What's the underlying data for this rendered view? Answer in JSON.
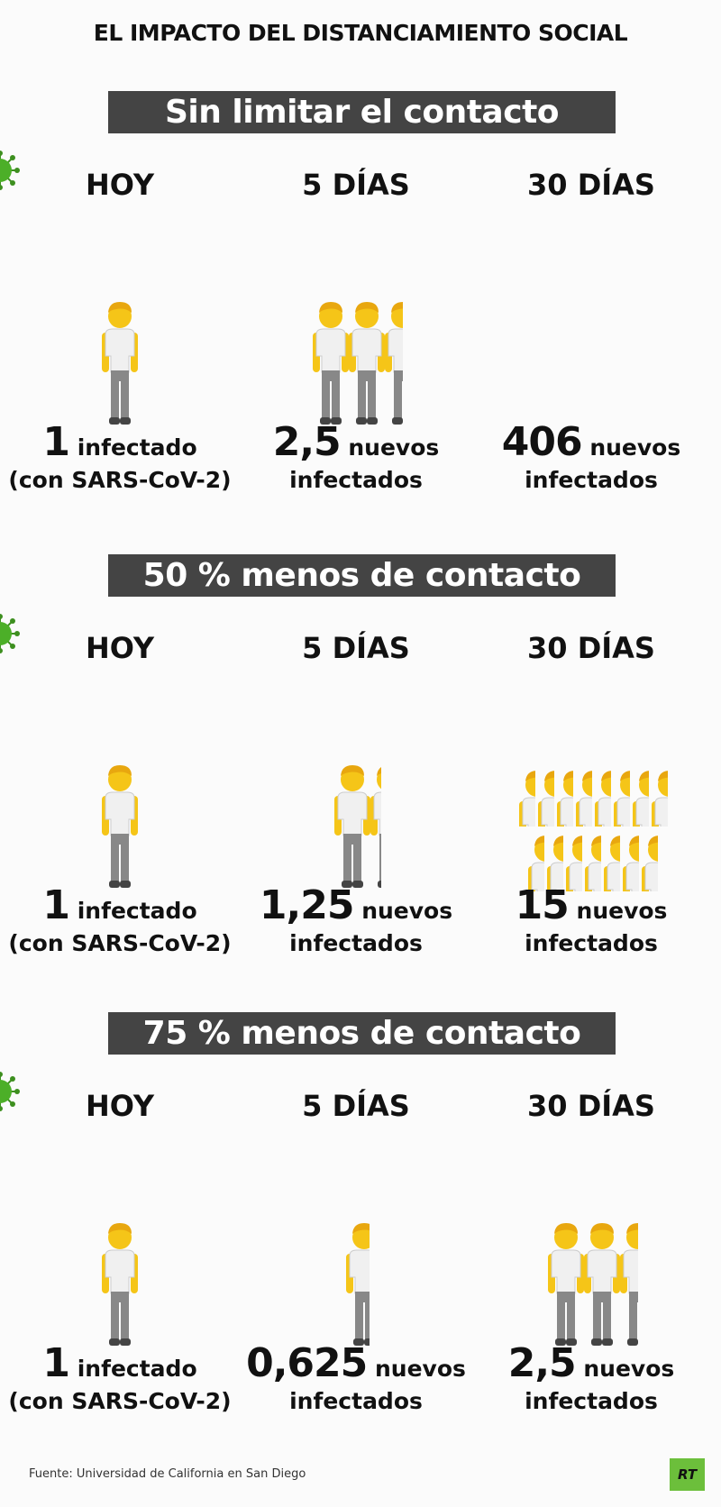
{
  "title": "EL IMPACTO DEL DISTANCIAMIENTO SOCIAL",
  "colors": {
    "banner": "#444444",
    "skin": "#f5c518",
    "shirt": "#f2f2f2",
    "pants": "#8a8a8a",
    "virus": "#4caf28",
    "logo": "#6cbf3b"
  },
  "scenarios": [
    {
      "banner": "Sin limitar el contacto",
      "columns": [
        {
          "header": "HOY",
          "value": 1,
          "num": "1",
          "line1": "infectado",
          "line2": "(con SARS-CoV-2)"
        },
        {
          "header": "5 DÍAS",
          "value": 2.5,
          "num": "2,5",
          "line1": "nuevos",
          "line2": "infectados"
        },
        {
          "header": "30 DÍAS",
          "value": 406,
          "num": "406",
          "line1": "nuevos",
          "line2": "infectados"
        }
      ]
    },
    {
      "banner": "50 % menos de contacto",
      "columns": [
        {
          "header": "HOY",
          "value": 1,
          "num": "1",
          "line1": "infectado",
          "line2": "(con SARS-CoV-2)"
        },
        {
          "header": "5 DÍAS",
          "value": 1.25,
          "num": "1,25",
          "line1": "nuevos",
          "line2": "infectados"
        },
        {
          "header": "30 DÍAS",
          "value": 15,
          "num": "15",
          "line1": "nuevos",
          "line2": "infectados"
        }
      ]
    },
    {
      "banner": "75 % menos de contacto",
      "columns": [
        {
          "header": "HOY",
          "value": 1,
          "num": "1",
          "line1": "infectado",
          "line2": "(con SARS-CoV-2)"
        },
        {
          "header": "5 DÍAS",
          "value": 0.625,
          "num": "0,625",
          "line1": "nuevos",
          "line2": "infectados"
        },
        {
          "header": "30 DÍAS",
          "value": 2.5,
          "num": "2,5",
          "line1": "nuevos",
          "line2": "infectados"
        }
      ]
    }
  ],
  "footer": {
    "source": "Fuente: Universidad de California en San Diego",
    "logo": "RT"
  }
}
